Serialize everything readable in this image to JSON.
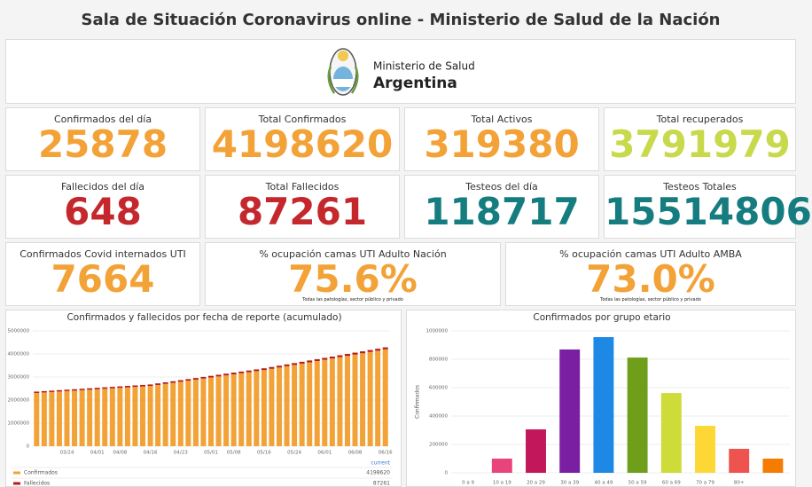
{
  "header": {
    "title": "Sala de Situación Coronavirus online - Ministerio de Salud de la Nación",
    "logo": {
      "line1": "Ministerio de Salud",
      "line2": "Argentina"
    }
  },
  "panels": [
    {
      "label": "Confirmados del día",
      "value": "25878",
      "color": "#f2a236"
    },
    {
      "label": "Total Confirmados",
      "value": "4198620",
      "color": "#f2a236"
    },
    {
      "label": "Total Activos",
      "value": "319380",
      "color": "#f2a236"
    },
    {
      "label": "Total recuperados",
      "value": "3791979",
      "color": "#c8d94c"
    },
    {
      "label": "Fallecidos del día",
      "value": "648",
      "color": "#c4282d"
    },
    {
      "label": "Total Fallecidos",
      "value": "87261",
      "color": "#c4282d"
    },
    {
      "label": "Testeos del día",
      "value": "118717",
      "color": "#157d80"
    },
    {
      "label": "Testeos Totales",
      "value": "15514806",
      "color": "#157d80"
    },
    {
      "label": "Confirmados Covid internados UTI",
      "value": "7664",
      "color": "#f2a236"
    },
    {
      "label": "% ocupación camas UTI Adulto Nación",
      "value": "75.6%",
      "color": "#f2a236",
      "note": "Todas las patologías, sector público y privado"
    },
    {
      "label": "% ocupación camas UTI Adulto AMBA",
      "value": "73.0%",
      "color": "#f2a236",
      "note": "Todas las patologías, sector público y privado"
    }
  ],
  "chart_data": [
    {
      "type": "bar",
      "stacked": true,
      "grid": true,
      "title": "Confirmados y fallecidos por fecha de reporte (acumulado)",
      "categories": [
        null,
        null,
        null,
        null,
        "03/24",
        null,
        null,
        null,
        "04/01",
        null,
        null,
        "04/08",
        null,
        null,
        null,
        "04/16",
        null,
        null,
        null,
        "04/23",
        null,
        null,
        null,
        "05/01",
        null,
        null,
        "05/08",
        null,
        null,
        null,
        "05/16",
        null,
        null,
        null,
        "05/24",
        null,
        null,
        null,
        "06/01",
        null,
        null,
        null,
        "06/08",
        null,
        null,
        null,
        "06/16"
      ],
      "series": [
        {
          "name": "Confirmados",
          "color": "#f2a236",
          "values": [
            2310000,
            2330000,
            2350000,
            2370000,
            2390000,
            2410000,
            2430000,
            2450000,
            2470000,
            2490000,
            2510000,
            2530000,
            2550000,
            2570000,
            2590000,
            2610000,
            2656000,
            2702000,
            2748000,
            2794000,
            2840000,
            2886000,
            2932000,
            2978000,
            3024000,
            3070000,
            3116000,
            3162000,
            3208000,
            3254000,
            3300000,
            3356000,
            3412000,
            3468000,
            3524000,
            3580000,
            3636000,
            3692000,
            3748000,
            3804000,
            3860000,
            3916000,
            3972000,
            4028000,
            4084000,
            4140000,
            4198620
          ]
        },
        {
          "name": "Fallecidos",
          "color": "#b71c1c",
          "values": [
            57000,
            57650,
            58300,
            58950,
            59600,
            60250,
            60900,
            61550,
            62200,
            62850,
            63500,
            64150,
            64800,
            65450,
            66100,
            66750,
            67400,
            68050,
            68700,
            69350,
            70000,
            70650,
            71300,
            71950,
            72600,
            73250,
            73900,
            74550,
            75200,
            75850,
            76500,
            77150,
            77800,
            78450,
            79100,
            79750,
            80400,
            81050,
            81700,
            82350,
            83000,
            83650,
            84300,
            84950,
            85600,
            86250,
            87261
          ]
        }
      ],
      "legend_header": "current",
      "ylim": [
        0,
        5000000
      ],
      "yticks": [
        0,
        1000000,
        2000000,
        3000000,
        4000000,
        5000000
      ]
    },
    {
      "type": "bar",
      "grid": true,
      "title": "Confirmados por grupo etario",
      "ylabel": "Confirmados",
      "categories": [
        "0 a 9",
        "10 a 19",
        "20 a 29",
        "30 a 39",
        "40 a 49",
        "50 a 59",
        "60 a 69",
        "70 a 79",
        "80+",
        null
      ],
      "values": [
        0,
        100000,
        306000,
        869000,
        956000,
        812000,
        562000,
        331000,
        169000,
        100000
      ],
      "colors": [
        "#e8437a",
        "#e8437a",
        "#c2185b",
        "#7b1fa2",
        "#1e88e5",
        "#6f9f1a",
        "#cddc39",
        "#fdd835",
        "#ef5350",
        "#f57c00"
      ],
      "ylim": [
        0,
        1000000
      ],
      "yticks": [
        0,
        200000,
        400000,
        600000,
        800000,
        1000000
      ]
    }
  ]
}
